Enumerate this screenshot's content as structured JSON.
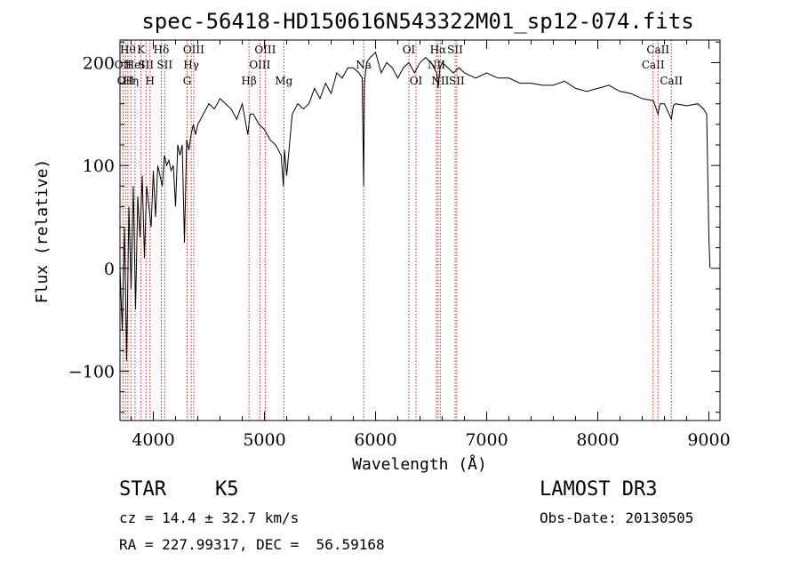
{
  "chart_data": {
    "type": "line",
    "title": "spec-56418-HD150616N543322M01_sp12-074.fits",
    "xlabel": "Wavelength (Å)",
    "ylabel": "Flux (relative)",
    "xlim": [
      3700,
      9100
    ],
    "ylim": [
      -148,
      222
    ],
    "xticks": [
      4000,
      5000,
      6000,
      7000,
      8000,
      9000
    ],
    "yticks": [
      -100,
      0,
      100,
      200
    ],
    "series": [
      {
        "name": "flux",
        "x": [
          3700,
          3720,
          3740,
          3760,
          3780,
          3800,
          3820,
          3840,
          3860,
          3880,
          3900,
          3920,
          3940,
          3960,
          3980,
          4000,
          4020,
          4040,
          4060,
          4080,
          4100,
          4120,
          4140,
          4160,
          4180,
          4200,
          4220,
          4240,
          4260,
          4280,
          4300,
          4320,
          4340,
          4360,
          4380,
          4400,
          4450,
          4500,
          4550,
          4600,
          4650,
          4700,
          4750,
          4800,
          4850,
          4870,
          4900,
          4950,
          5000,
          5050,
          5100,
          5150,
          5170,
          5180,
          5200,
          5250,
          5300,
          5350,
          5400,
          5450,
          5500,
          5550,
          5600,
          5650,
          5700,
          5750,
          5800,
          5850,
          5880,
          5893,
          5900,
          5920,
          5950,
          6000,
          6050,
          6100,
          6150,
          6200,
          6250,
          6300,
          6350,
          6400,
          6450,
          6500,
          6550,
          6563,
          6580,
          6600,
          6650,
          6700,
          6750,
          6800,
          6900,
          7000,
          7100,
          7200,
          7300,
          7400,
          7500,
          7600,
          7700,
          7800,
          7900,
          8000,
          8100,
          8200,
          8300,
          8400,
          8500,
          8542,
          8560,
          8600,
          8662,
          8680,
          8700,
          8800,
          8900,
          8950,
          8980,
          9000,
          9010
        ],
        "values": [
          0,
          -60,
          40,
          -90,
          60,
          -20,
          80,
          -40,
          70,
          30,
          90,
          10,
          80,
          60,
          40,
          95,
          50,
          100,
          90,
          80,
          110,
          100,
          105,
          95,
          100,
          60,
          120,
          110,
          120,
          25,
          125,
          115,
          130,
          140,
          130,
          140,
          150,
          160,
          155,
          165,
          160,
          155,
          145,
          160,
          130,
          150,
          150,
          140,
          135,
          125,
          120,
          110,
          80,
          115,
          90,
          150,
          160,
          155,
          160,
          175,
          165,
          180,
          170,
          190,
          185,
          195,
          195,
          190,
          185,
          80,
          180,
          200,
          205,
          210,
          190,
          200,
          195,
          185,
          195,
          200,
          190,
          200,
          205,
          200,
          190,
          175,
          195,
          200,
          195,
          190,
          195,
          190,
          185,
          190,
          185,
          185,
          180,
          180,
          178,
          178,
          182,
          175,
          172,
          175,
          178,
          172,
          170,
          165,
          163,
          150,
          160,
          160,
          145,
          158,
          160,
          158,
          160,
          155,
          150,
          30,
          0
        ]
      }
    ],
    "lines": [
      {
        "wave": 3727,
        "label": "OII",
        "row": 1
      },
      {
        "wave": 3750,
        "label": "OII",
        "row": 2
      },
      {
        "wave": 3771,
        "label": "Hθ",
        "row": 0
      },
      {
        "wave": 3798,
        "label": "Hη",
        "row": 2
      },
      {
        "wave": 3835,
        "label": "HeI",
        "row": 1
      },
      {
        "wave": 3889,
        "label": "K",
        "row": 0
      },
      {
        "wave": 3934,
        "label": "SII",
        "row": 1
      },
      {
        "wave": 3970,
        "label": "H",
        "row": 2
      },
      {
        "wave": 4072,
        "label": "Hδ",
        "row": 0
      },
      {
        "wave": 4102,
        "label": "SII",
        "row": 1
      },
      {
        "wave": 4304,
        "label": "G",
        "row": 2
      },
      {
        "wave": 4341,
        "label": "Hγ",
        "row": 1
      },
      {
        "wave": 4363,
        "label": "OIII",
        "row": 0
      },
      {
        "wave": 4861,
        "label": "Hβ",
        "row": 2
      },
      {
        "wave": 4959,
        "label": "OIII",
        "row": 1
      },
      {
        "wave": 5007,
        "label": "OIII",
        "row": 0
      },
      {
        "wave": 5175,
        "label": "Mg",
        "row": 2
      },
      {
        "wave": 5893,
        "label": "Na",
        "row": 1
      },
      {
        "wave": 6300,
        "label": "OI",
        "row": 0
      },
      {
        "wave": 6364,
        "label": "OI",
        "row": 2
      },
      {
        "wave": 6548,
        "label": "NII",
        "row": 1
      },
      {
        "wave": 6563,
        "label": "Hα",
        "row": 0
      },
      {
        "wave": 6583,
        "label": "NII",
        "row": 2
      },
      {
        "wave": 6716,
        "label": "SII",
        "row": 0
      },
      {
        "wave": 6731,
        "label": "SII",
        "row": 2
      },
      {
        "wave": 8498,
        "label": "CaII",
        "row": 1
      },
      {
        "wave": 8542,
        "label": "CaII",
        "row": 0
      },
      {
        "wave": 8662,
        "label": "CaII",
        "row": 2
      }
    ]
  },
  "info": {
    "class": "STAR",
    "subclass": "K5",
    "survey": "LAMOST DR3",
    "cz": "cz = 14.4 ± 32.7 km/s",
    "obs_date": "Obs-Date: 20130505",
    "coords": "RA = 227.99317, DEC =  56.59168"
  }
}
